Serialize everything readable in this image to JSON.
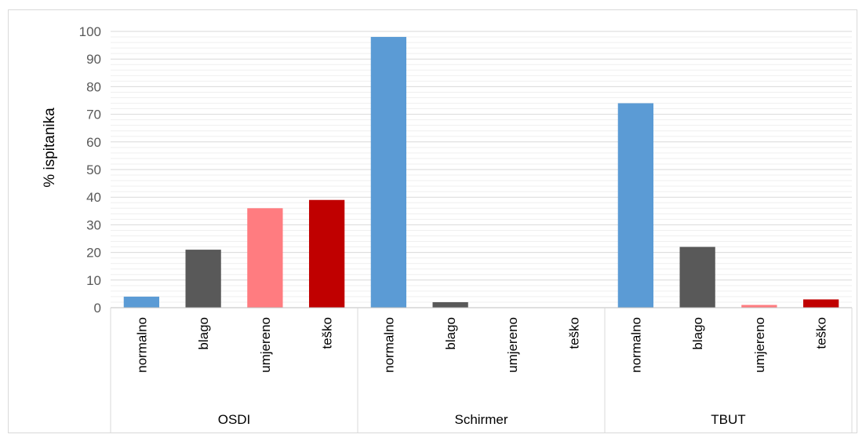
{
  "chart_data": {
    "type": "bar",
    "ylabel": "% ispitanika",
    "ylim": [
      0,
      100
    ],
    "y_ticks": [
      "0",
      "10",
      "20",
      "30",
      "40",
      "50",
      "60",
      "70",
      "80",
      "90",
      "100"
    ],
    "grid": true,
    "groups": [
      {
        "name": "OSDI",
        "bars": [
          {
            "category": "normalno",
            "value": 4,
            "color": "#5b9bd5"
          },
          {
            "category": "blago",
            "value": 21,
            "color": "#595959"
          },
          {
            "category": "umjereno",
            "value": 36,
            "color": "#ff7c80"
          },
          {
            "category": "teško",
            "value": 39,
            "color": "#c00000"
          }
        ]
      },
      {
        "name": "Schirmer",
        "bars": [
          {
            "category": "normalno",
            "value": 98,
            "color": "#5b9bd5"
          },
          {
            "category": "blago",
            "value": 2,
            "color": "#595959"
          },
          {
            "category": "umjereno",
            "value": 0,
            "color": "#ff7c80"
          },
          {
            "category": "teško",
            "value": 0,
            "color": "#c00000"
          }
        ]
      },
      {
        "name": "TBUT",
        "bars": [
          {
            "category": "normalno",
            "value": 74,
            "color": "#5b9bd5"
          },
          {
            "category": "blago",
            "value": 22,
            "color": "#595959"
          },
          {
            "category": "umjereno",
            "value": 1,
            "color": "#ff7c80"
          },
          {
            "category": "teško",
            "value": 3,
            "color": "#c00000"
          }
        ]
      }
    ]
  }
}
